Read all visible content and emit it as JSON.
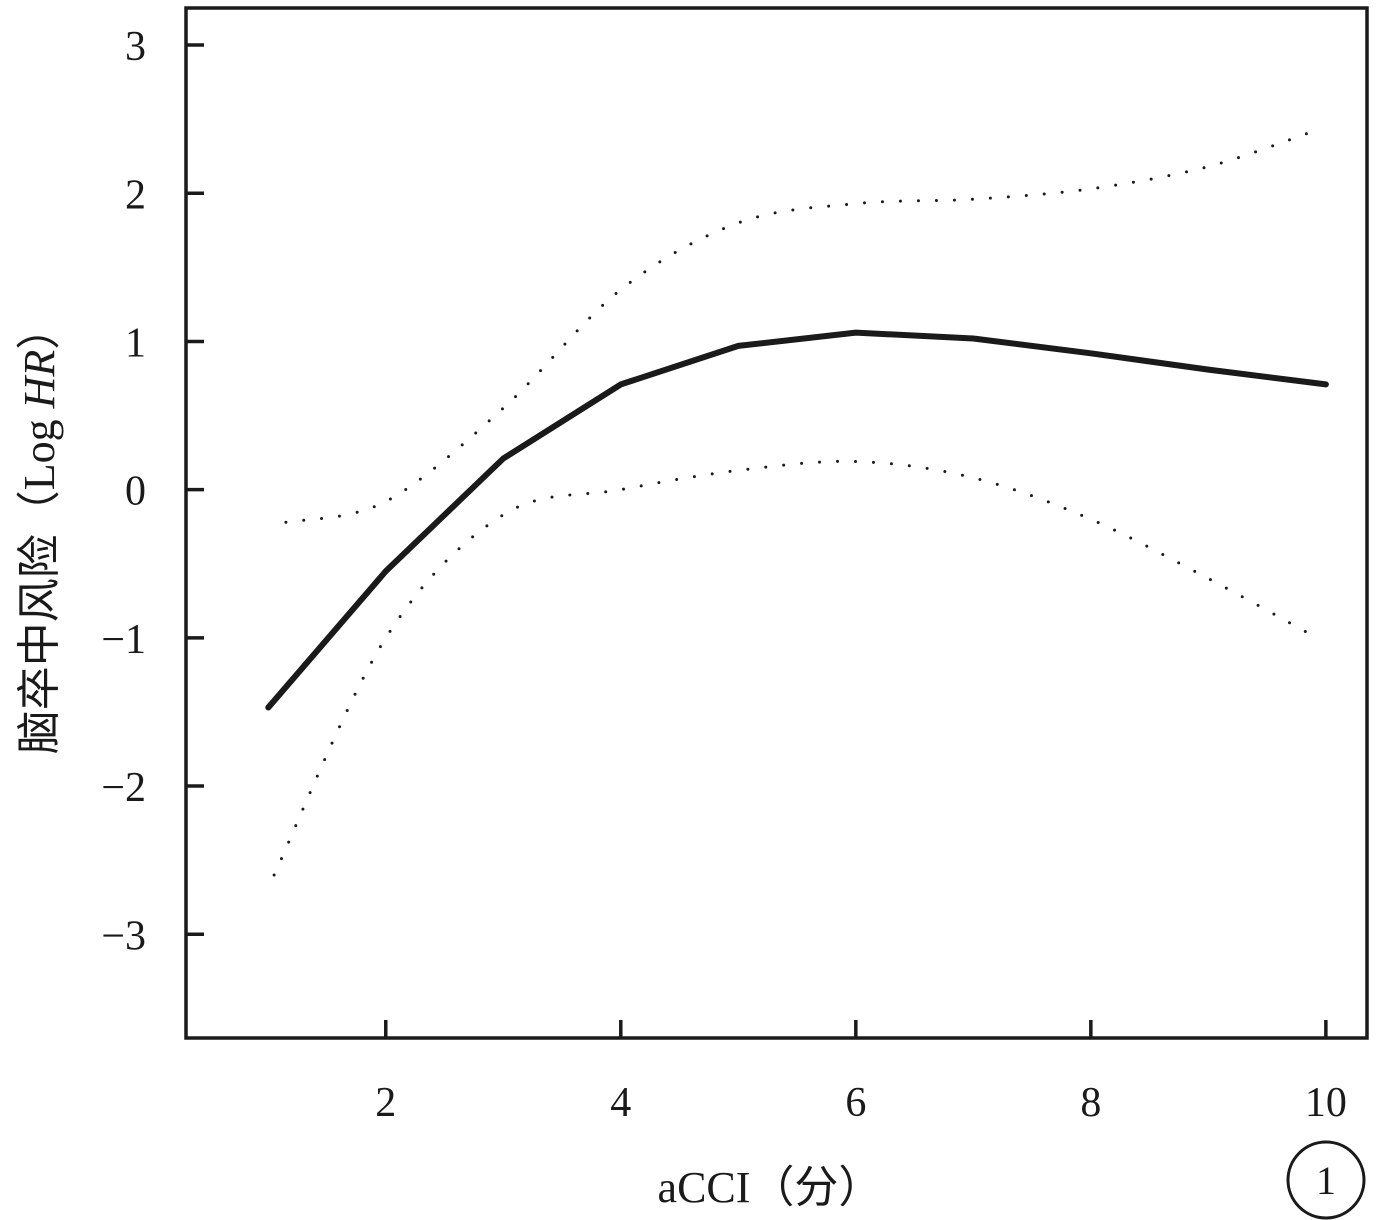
{
  "chart_data": {
    "type": "line",
    "xlabel": "aCCI（分）",
    "ylabel": "脑卒中风险（Log HR）",
    "ylabel_parts": {
      "prefix": "脑卒中风险（Log ",
      "italic": "HR",
      "suffix": "）"
    },
    "xlim": [
      0.3,
      10.35
    ],
    "ylim": [
      -3.7,
      3.25
    ],
    "x_ticks": [
      2,
      4,
      6,
      8,
      10
    ],
    "x_tick_labels": [
      "2",
      "4",
      "6",
      "8",
      "10"
    ],
    "y_ticks": [
      3,
      2,
      1,
      0,
      -1,
      -2,
      -3
    ],
    "y_tick_labels": [
      "3",
      "2",
      "1",
      "0",
      "−1",
      "−2",
      "−3"
    ],
    "grid": false,
    "legend": "none",
    "panel_label": "1",
    "series": [
      {
        "role": "estimate",
        "style": "solid",
        "color": "#1a1a1a",
        "x": [
          1,
          2,
          3,
          4,
          5,
          6,
          7,
          8,
          9,
          10
        ],
        "y": [
          -1.47,
          -0.55,
          0.21,
          0.71,
          0.97,
          1.06,
          1.02,
          0.92,
          0.81,
          0.71
        ]
      },
      {
        "role": "upper-ci",
        "style": "dotted",
        "color": "#1a1a1a",
        "x": [
          1.15,
          2,
          3,
          4,
          5,
          6,
          7,
          8,
          9,
          9.9
        ],
        "y": [
          -0.22,
          -0.08,
          0.55,
          1.35,
          1.8,
          1.93,
          1.96,
          2.03,
          2.18,
          2.42
        ]
      },
      {
        "role": "lower-ci",
        "style": "dotted",
        "color": "#1a1a1a",
        "x": [
          1.05,
          2,
          3,
          4,
          5,
          6,
          7,
          8,
          9,
          9.9
        ],
        "y": [
          -2.6,
          -1.0,
          -0.17,
          0.0,
          0.13,
          0.19,
          0.08,
          -0.2,
          -0.6,
          -0.99
        ]
      }
    ]
  }
}
